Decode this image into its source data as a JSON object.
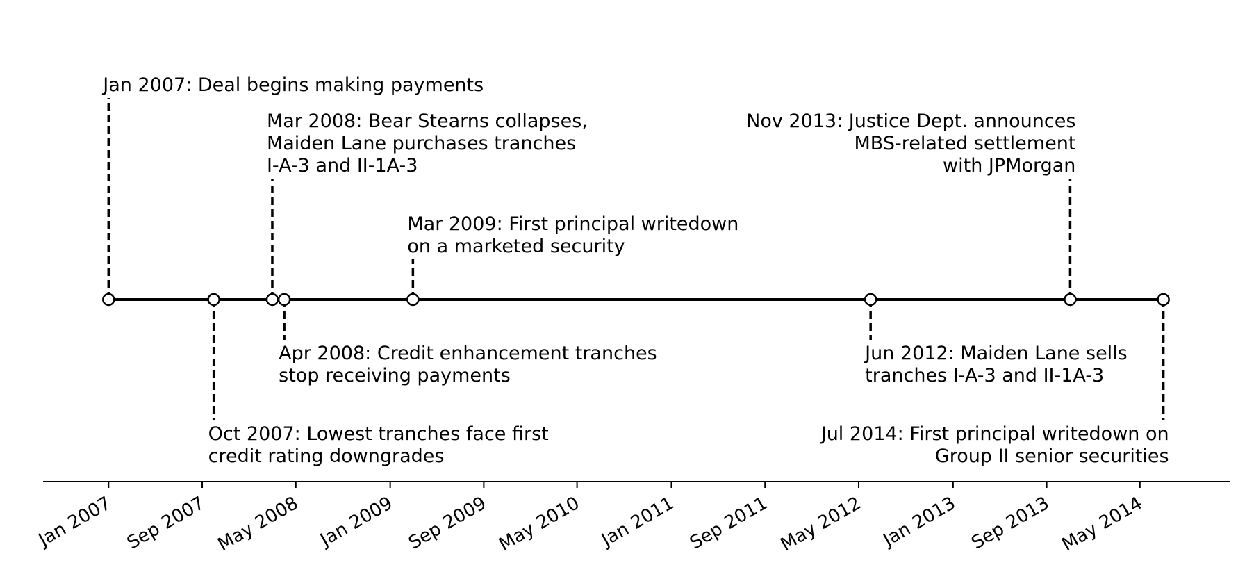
{
  "chart_data": {
    "type": "timeline",
    "title": "",
    "xlabel": "",
    "ylabel": "",
    "grid": false,
    "legend": "none",
    "colors": {
      "line": "#000000",
      "marker_fill": "#ffffff",
      "marker_edge": "#000000",
      "text": "#000000",
      "background": "#ffffff"
    },
    "x_axis": {
      "min": "2006-07-15",
      "max": "2014-12-20",
      "ticks": [
        {
          "date": "2007-01-01",
          "label": "Jan 2007"
        },
        {
          "date": "2007-09-01",
          "label": "Sep 2007"
        },
        {
          "date": "2008-05-01",
          "label": "May 2008"
        },
        {
          "date": "2009-01-01",
          "label": "Jan 2009"
        },
        {
          "date": "2009-09-01",
          "label": "Sep 2009"
        },
        {
          "date": "2010-05-01",
          "label": "May 2010"
        },
        {
          "date": "2011-01-01",
          "label": "Jan 2011"
        },
        {
          "date": "2011-09-01",
          "label": "Sep 2011"
        },
        {
          "date": "2012-05-01",
          "label": "May 2012"
        },
        {
          "date": "2013-01-01",
          "label": "Jan 2013"
        },
        {
          "date": "2013-09-01",
          "label": "Sep 2013"
        },
        {
          "date": "2014-05-01",
          "label": "May 2014"
        }
      ]
    },
    "events": [
      {
        "date": "2007-01-01",
        "level": 5,
        "align": "left",
        "lines": [
          "Jan 2007: Deal begins making payments"
        ]
      },
      {
        "date": "2007-10-01",
        "level": -3,
        "align": "left",
        "lines": [
          "Oct 2007: Lowest tranches face first",
          "credit rating downgrades"
        ]
      },
      {
        "date": "2008-03-01",
        "level": 3,
        "align": "left",
        "lines": [
          "Mar 2008: Bear Stearns collapses,",
          "Maiden Lane purchases tranches",
          "I-A-3 and II-1A-3"
        ]
      },
      {
        "date": "2008-04-01",
        "level": -1,
        "align": "left",
        "lines": [
          "Apr 2008: Credit enhancement tranches",
          "stop receiving payments"
        ]
      },
      {
        "date": "2009-03-01",
        "level": 1,
        "align": "left",
        "lines": [
          "Mar 2009: First principal writedown",
          "on a marketed security"
        ]
      },
      {
        "date": "2012-06-01",
        "level": -1,
        "align": "left",
        "lines": [
          "Jun 2012: Maiden Lane sells",
          "tranches I-A-3 and II-1A-3"
        ]
      },
      {
        "date": "2013-11-01",
        "level": 3,
        "align": "right",
        "lines": [
          "Nov 2013: Justice Dept. announces",
          "MBS-related settlement",
          "with JPMorgan"
        ]
      },
      {
        "date": "2014-07-01",
        "level": -3,
        "align": "right",
        "lines": [
          "Jul 2014: First principal writedown on",
          "Group II senior securities"
        ]
      }
    ]
  }
}
